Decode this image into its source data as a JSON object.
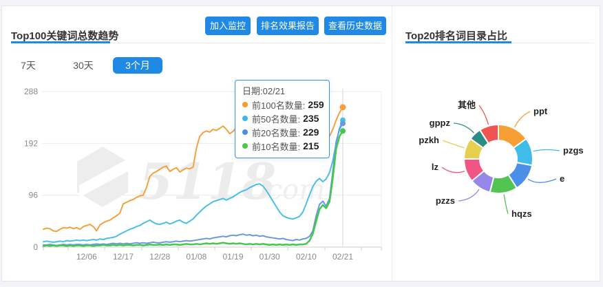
{
  "left_panel": {
    "title": "Top100关键词总数趋势",
    "buttons": [
      {
        "label": "加入监控"
      },
      {
        "label": "排名效果报告"
      },
      {
        "label": "查看历史数据"
      }
    ],
    "tabs": [
      {
        "label": "7天",
        "active": false
      },
      {
        "label": "30天",
        "active": false
      },
      {
        "label": "3个月",
        "active": true
      }
    ],
    "tooltip": {
      "date_label": "日期:02/21",
      "rows": [
        {
          "label": "前100名数量:",
          "value": "259",
          "color": "#FA9A2C"
        },
        {
          "label": "前50名数量:",
          "value": "235",
          "color": "#3BB8E8"
        },
        {
          "label": "前20名数量:",
          "value": "229",
          "color": "#4A90E2"
        },
        {
          "label": "前10名数量:",
          "value": "215",
          "color": "#4CC74C"
        }
      ]
    },
    "watermark": {
      "text": "5118",
      "suffix": ".com"
    }
  },
  "right_panel": {
    "title": "Top20排名词目录占比"
  },
  "theme": {
    "accent_blue": "#2088e5"
  },
  "chart_data": [
    {
      "type": "line",
      "title": "Top100关键词总数趋势",
      "ylabel": "",
      "ylim": [
        0,
        288
      ],
      "y_ticks": [
        0,
        96,
        192,
        288
      ],
      "x_tick_labels": [
        "12/06",
        "12/17",
        "12/28",
        "01/08",
        "01/19",
        "01/30",
        "02/10",
        "02/21"
      ],
      "x_tick_indices": [
        13,
        24,
        35,
        46,
        57,
        68,
        79,
        90
      ],
      "hover_index": 90,
      "hover_date": "02/21",
      "series": [
        {
          "key": "top100",
          "name": "前100名数量",
          "color": "#F7A13D",
          "width": 2,
          "values": [
            33,
            35,
            34,
            30,
            29,
            33,
            36,
            35,
            37,
            34,
            36,
            33,
            38,
            40,
            42,
            38,
            30,
            41,
            45,
            48,
            50,
            54,
            58,
            63,
            80,
            83,
            86,
            88,
            92,
            95,
            96,
            110,
            131,
            137,
            140,
            144,
            148,
            150,
            140,
            144,
            147,
            139,
            143,
            146,
            145,
            148,
            183,
            205,
            212,
            215,
            213,
            218,
            216,
            220,
            224,
            218,
            210,
            214,
            222,
            228,
            224,
            216,
            222,
            218,
            212,
            208,
            214,
            210,
            205,
            208,
            203,
            207,
            200,
            204,
            199,
            203,
            198,
            201,
            196,
            199,
            196,
            193,
            197,
            194,
            196,
            198,
            205,
            218,
            235,
            249,
            259
          ]
        },
        {
          "key": "top50",
          "name": "前50名数量",
          "color": "#49BEE8",
          "width": 2,
          "values": [
            10,
            11,
            10,
            9,
            10,
            11,
            10,
            12,
            11,
            12,
            13,
            12,
            13,
            12,
            13,
            14,
            13,
            15,
            14,
            16,
            17,
            18,
            20,
            24,
            27,
            30,
            33,
            35,
            38,
            40,
            44,
            47,
            50,
            46,
            43,
            42,
            44,
            46,
            43,
            45,
            48,
            50,
            46,
            44,
            48,
            52,
            59,
            65,
            71,
            76,
            80,
            84,
            86,
            88,
            90,
            87,
            90,
            93,
            97,
            101,
            104,
            106,
            110,
            113,
            116,
            117,
            113,
            105,
            95,
            85,
            75,
            65,
            58,
            55,
            53,
            52,
            54,
            57,
            65,
            80,
            97,
            112,
            122,
            127,
            121,
            126,
            138,
            160,
            192,
            220,
            235
          ]
        },
        {
          "key": "top20",
          "name": "前20名数量",
          "color": "#6699E0",
          "width": 2,
          "values": [
            4,
            4,
            5,
            4,
            3,
            4,
            5,
            4,
            5,
            4,
            5,
            5,
            4,
            5,
            4,
            5,
            6,
            5,
            6,
            5,
            6,
            7,
            6,
            7,
            6,
            7,
            6,
            7,
            8,
            7,
            8,
            7,
            8,
            9,
            8,
            8,
            9,
            10,
            9,
            10,
            11,
            10,
            11,
            12,
            11,
            12,
            13,
            14,
            15,
            16,
            15,
            17,
            18,
            19,
            20,
            19,
            21,
            22,
            21,
            23,
            24,
            22,
            23,
            21,
            22,
            20,
            21,
            19,
            18,
            17,
            16,
            15,
            16,
            14,
            13,
            12,
            14,
            13,
            15,
            16,
            20,
            30,
            58,
            79,
            85,
            76,
            90,
            140,
            195,
            218,
            229
          ]
        },
        {
          "key": "top10",
          "name": "前10名数量",
          "color": "#44C74F",
          "width": 2.5,
          "values": [
            2,
            3,
            2,
            3,
            2,
            3,
            3,
            2,
            3,
            2,
            3,
            3,
            2,
            3,
            3,
            2,
            3,
            3,
            4,
            3,
            3,
            4,
            3,
            4,
            3,
            4,
            4,
            3,
            4,
            4,
            3,
            4,
            5,
            4,
            4,
            5,
            4,
            5,
            4,
            5,
            5,
            4,
            5,
            6,
            5,
            5,
            6,
            5,
            6,
            7,
            6,
            7,
            6,
            7,
            8,
            7,
            6,
            7,
            6,
            7,
            6,
            5,
            6,
            5,
            6,
            5,
            6,
            5,
            4,
            5,
            4,
            5,
            4,
            5,
            4,
            5,
            4,
            5,
            5,
            6,
            12,
            25,
            48,
            70,
            78,
            72,
            84,
            128,
            182,
            205,
            215
          ]
        }
      ]
    },
    {
      "type": "pie",
      "title": "Top20排名词目录占比",
      "donut": true,
      "slices": [
        {
          "label": "ppt",
          "value": 15,
          "color": "#F79F35"
        },
        {
          "label": "pzgs",
          "value": 13,
          "color": "#3FBCE8"
        },
        {
          "label": "e",
          "value": 13,
          "color": "#4A90E8"
        },
        {
          "label": "hqzs",
          "value": 13,
          "color": "#52C452"
        },
        {
          "label": "pzzs",
          "value": 10,
          "color": "#9588E8"
        },
        {
          "label": "lz",
          "value": 11,
          "color": "#F05586"
        },
        {
          "label": "pzkh",
          "value": 10,
          "color": "#E5D052"
        },
        {
          "label": "gppz",
          "value": 6,
          "color": "#2B8C85"
        },
        {
          "label": "其他",
          "value": 9,
          "color": "#F05452"
        }
      ]
    }
  ]
}
